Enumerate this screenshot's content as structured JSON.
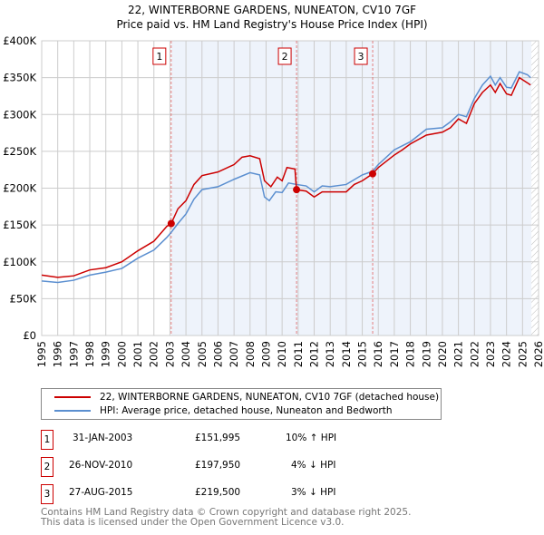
{
  "title": "22, WINTERBORNE GARDENS, NUNEATON, CV10 7GF",
  "subtitle": "Price paid vs. HM Land Registry's House Price Index (HPI)",
  "colors": {
    "price": "#cc0000",
    "hpi": "#5b8fd0",
    "shade": "#eef3fb"
  },
  "chart_data": {
    "type": "line",
    "title": "22, WINTERBORNE GARDENS, NUNEATON, CV10 7GF",
    "xlim": [
      1995,
      2026
    ],
    "ylim": [
      0,
      400000
    ],
    "yticks": [
      {
        "v": 0,
        "label": "£0"
      },
      {
        "v": 50000,
        "label": "£50K"
      },
      {
        "v": 100000,
        "label": "£100K"
      },
      {
        "v": 150000,
        "label": "£150K"
      },
      {
        "v": 200000,
        "label": "£200K"
      },
      {
        "v": 250000,
        "label": "£250K"
      },
      {
        "v": 300000,
        "label": "£300K"
      },
      {
        "v": 350000,
        "label": "£350K"
      },
      {
        "v": 400000,
        "label": "£400K"
      }
    ],
    "xticks": [
      "1995",
      "1996",
      "1997",
      "1998",
      "1999",
      "2000",
      "2001",
      "2002",
      "2003",
      "2004",
      "2005",
      "2006",
      "2007",
      "2008",
      "2009",
      "2010",
      "2011",
      "2012",
      "2013",
      "2014",
      "2015",
      "2016",
      "2017",
      "2018",
      "2019",
      "2020",
      "2021",
      "2022",
      "2023",
      "2024",
      "2025",
      "2026"
    ],
    "series": [
      {
        "name": "22, WINTERBORNE GARDENS, NUNEATON, CV10 7GF (detached house)",
        "x": [
          1995,
          1996,
          1997,
          1998,
          1999,
          2000,
          2001,
          2002,
          2002.8,
          2003.08,
          2003.5,
          2004,
          2004.5,
          2005,
          2006,
          2007,
          2007.5,
          2008,
          2008.6,
          2008.9,
          2009.3,
          2009.7,
          2010,
          2010.3,
          2010.8,
          2010.9,
          2011.5,
          2012,
          2012.5,
          2013,
          2014,
          2014.5,
          2015,
          2015.65,
          2016,
          2017,
          2017.5,
          2018,
          2019,
          2020,
          2020.5,
          2021,
          2021.5,
          2022,
          2022.5,
          2023,
          2023.3,
          2023.6,
          2024,
          2024.3,
          2024.8,
          2025.3,
          2025.5
        ],
        "values": [
          82000,
          79000,
          81000,
          89000,
          92000,
          100000,
          115000,
          128000,
          148000,
          151995,
          172000,
          183000,
          205000,
          217000,
          222000,
          232000,
          242000,
          244000,
          240000,
          210000,
          202000,
          215000,
          210000,
          228000,
          226000,
          197950,
          196000,
          188000,
          195000,
          195000,
          195000,
          205000,
          210000,
          219500,
          228000,
          245000,
          252000,
          260000,
          272000,
          276000,
          282000,
          294000,
          288000,
          315000,
          330000,
          340000,
          330000,
          342000,
          328000,
          326000,
          350000,
          343000,
          340000
        ]
      },
      {
        "name": "HPI: Average price, detached house, Nuneaton and Bedworth",
        "x": [
          1995,
          1996,
          1997,
          1998,
          1999,
          2000,
          2001,
          2002,
          2002.8,
          2003.08,
          2003.5,
          2004,
          2004.5,
          2005,
          2006,
          2007,
          2008,
          2008.6,
          2008.9,
          2009.2,
          2009.6,
          2010,
          2010.4,
          2010.9,
          2011.5,
          2012,
          2012.5,
          2013,
          2014,
          2015,
          2015.65,
          2016,
          2017,
          2018,
          2019,
          2020,
          2020.5,
          2021,
          2021.5,
          2022,
          2022.5,
          2023,
          2023.3,
          2023.6,
          2024,
          2024.3,
          2024.8,
          2025.3,
          2025.5
        ],
        "values": [
          74000,
          72000,
          75000,
          82000,
          86000,
          91000,
          105000,
          116000,
          133000,
          140000,
          152000,
          165000,
          185000,
          198000,
          202000,
          212000,
          221000,
          218000,
          188000,
          183000,
          195000,
          194000,
          207000,
          205000,
          203000,
          195000,
          203000,
          202000,
          205000,
          218000,
          223000,
          232000,
          252000,
          263000,
          280000,
          282000,
          290000,
          300000,
          297000,
          322000,
          340000,
          352000,
          340000,
          350000,
          337000,
          336000,
          358000,
          354000,
          350000
        ]
      }
    ],
    "sales": [
      {
        "n": "1",
        "x": 2003.08,
        "y": 151995
      },
      {
        "n": "2",
        "x": 2010.9,
        "y": 197950
      },
      {
        "n": "3",
        "x": 2015.65,
        "y": 219500
      }
    ]
  },
  "legend": [
    "22, WINTERBORNE GARDENS, NUNEATON, CV10 7GF (detached house)",
    "HPI: Average price, detached house, Nuneaton and Bedworth"
  ],
  "table": [
    {
      "n": "1",
      "date": "31-JAN-2003",
      "price": "£151,995",
      "hpi": "10% ↑ HPI"
    },
    {
      "n": "2",
      "date": "26-NOV-2010",
      "price": "£197,950",
      "hpi": "4% ↓ HPI"
    },
    {
      "n": "3",
      "date": "27-AUG-2015",
      "price": "£219,500",
      "hpi": "3% ↓ HPI"
    }
  ],
  "footer": [
    "Contains HM Land Registry data © Crown copyright and database right 2025.",
    "This data is licensed under the Open Government Licence v3.0."
  ]
}
